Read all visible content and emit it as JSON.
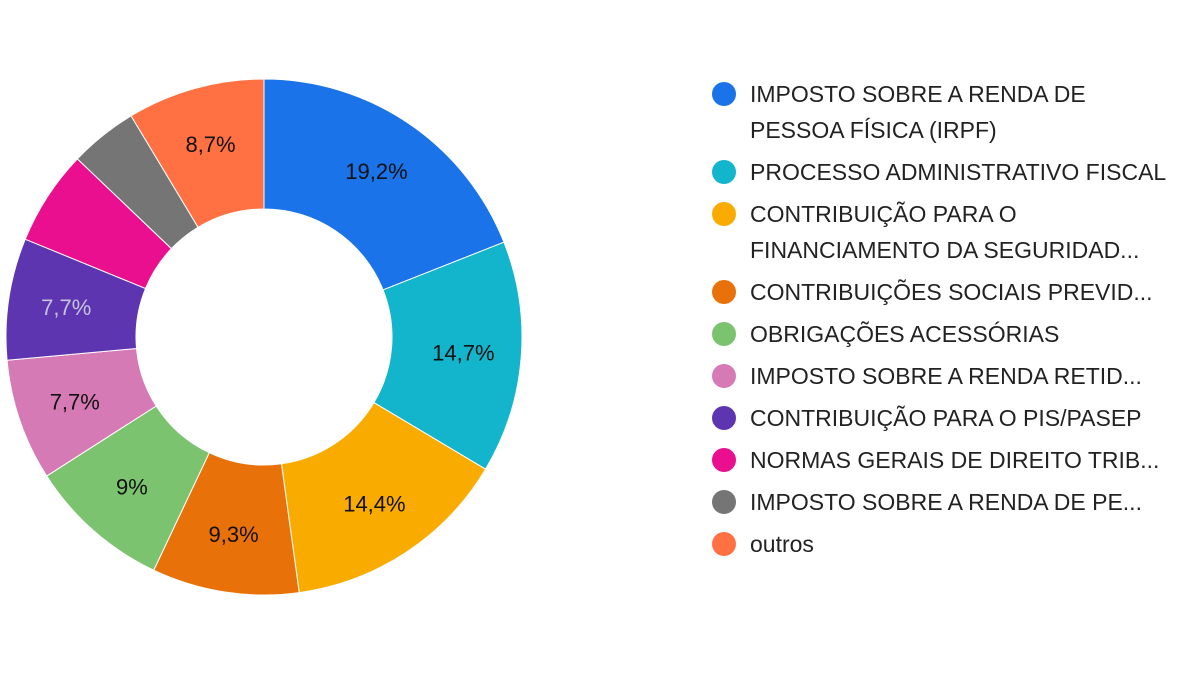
{
  "chart_data": {
    "type": "pie",
    "variant": "donut",
    "legend_position": "right",
    "start_angle_deg": 0,
    "slices": [
      {
        "label": "IMPOSTO SOBRE A RENDA DE PESSOA FÍSICA (IRPF)",
        "value": 19.2,
        "value_label": "19,2%",
        "color": "#1a73e8",
        "text_color": "#111111",
        "legend_lines": 2
      },
      {
        "label": "PROCESSO ADMINISTRATIVO FISCAL",
        "value": 14.7,
        "value_label": "14,7%",
        "color": "#12b5cb",
        "text_color": "#111111",
        "legend_lines": 2
      },
      {
        "label": "CONTRIBUIÇÃO PARA O FINANCIAMENTO DA SEGURIDAD...",
        "value": 14.4,
        "value_label": "14,4%",
        "color": "#f9ab00",
        "text_color": "#111111",
        "legend_lines": 2
      },
      {
        "label": "CONTRIBUIÇÕES SOCIAIS PREVID...",
        "value": 9.3,
        "value_label": "9,3%",
        "color": "#e8710a",
        "text_color": "#111111",
        "legend_lines": 1
      },
      {
        "label": "OBRIGAÇÕES ACESSÓRIAS",
        "value": 9.0,
        "value_label": "9%",
        "color": "#7cc36f",
        "text_color": "#111111",
        "legend_lines": 1
      },
      {
        "label": "IMPOSTO SOBRE A RENDA RETID...",
        "value": 7.7,
        "value_label": "7,7%",
        "color": "#d67ab5",
        "text_color": "#111111",
        "legend_lines": 1
      },
      {
        "label": "CONTRIBUIÇÃO PARA O PIS/PASEP",
        "value": 7.7,
        "value_label": "7,7%",
        "color": "#5e35b1",
        "text_color": "#c8c2dc",
        "legend_lines": 1
      },
      {
        "label": "NORMAS GERAIS DE DIREITO TRIB...",
        "value": 6.0,
        "value_label": "",
        "color": "#ea0f8e",
        "text_color": "#111111",
        "legend_lines": 1
      },
      {
        "label": "IMPOSTO SOBRE A RENDA DE PE...",
        "value": 4.3,
        "value_label": "",
        "color": "#757575",
        "text_color": "#111111",
        "legend_lines": 1
      },
      {
        "label": "outros",
        "value": 8.7,
        "value_label": "8,7%",
        "color": "#ff7043",
        "text_color": "#111111",
        "legend_lines": 1
      }
    ]
  }
}
